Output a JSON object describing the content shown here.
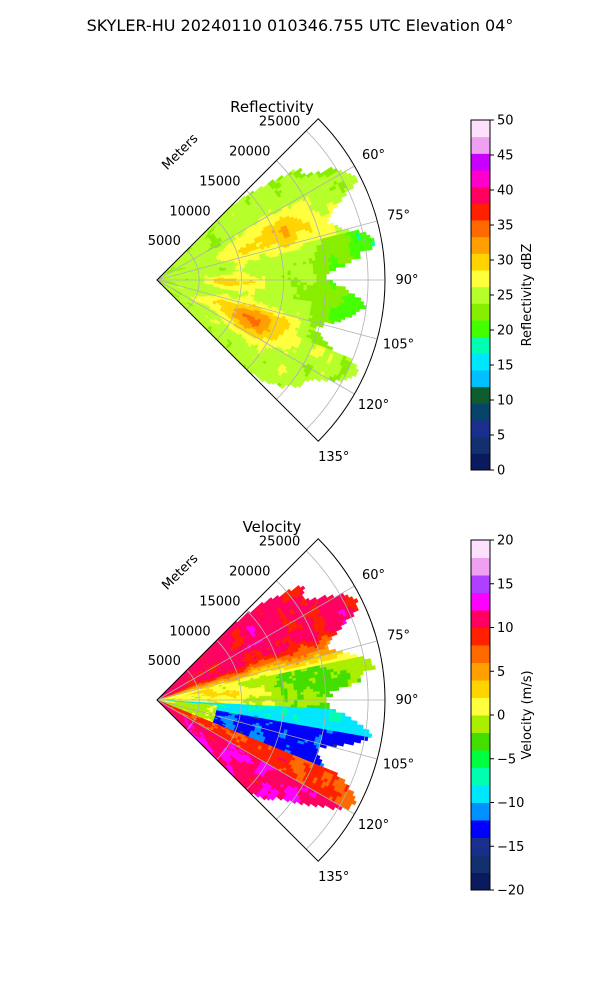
{
  "figure": {
    "suptitle": "SKYLER-HU  20240110  010346.755 UTC Elevation 04°"
  },
  "chart_data": [
    {
      "type": "heatmap",
      "kind": "radar-ppi-sector",
      "title": "Reflectivity",
      "radial_axis_label": "Meters",
      "radial_ticks": [
        5000,
        10000,
        15000,
        20000,
        25000
      ],
      "radial_tick_labels": [
        "5000",
        "10000",
        "15000",
        "20000",
        "25000"
      ],
      "rlim": [
        0,
        27000
      ],
      "azimuth_range_deg": [
        45,
        135
      ],
      "azimuth_ticks_deg": [
        60,
        75,
        90,
        105,
        120,
        135
      ],
      "azimuth_tick_labels": [
        "60°",
        "75°",
        "90°",
        "105°",
        "120°",
        "135°"
      ],
      "grid": true,
      "colorbar": {
        "label": "Reflectivity dBZ",
        "range": [
          0,
          50
        ],
        "ticks": [
          0,
          5,
          10,
          15,
          20,
          25,
          30,
          35,
          40,
          45,
          50
        ],
        "tick_labels": [
          "0",
          "5",
          "10",
          "15",
          "20",
          "25",
          "30",
          "35",
          "40",
          "45",
          "50"
        ],
        "colormap": "pyart_HomeyerRainbow",
        "colors": [
          "#0b1a5e",
          "#13306e",
          "#1a2f8c",
          "#08446a",
          "#0f5d2e",
          "#00bfff",
          "#00e6ff",
          "#00ffb0",
          "#44ff00",
          "#88ee00",
          "#b6ff2a",
          "#ffff3d",
          "#ffd400",
          "#ffa000",
          "#ff6a00",
          "#ff2000",
          "#ff0060",
          "#ff00cc",
          "#c800ff",
          "#f0a0f0",
          "#fde0fc"
        ]
      },
      "field_summary": {
        "dominant_values": "20–35 dBZ (yellow to orange) across the sector",
        "max_values": "≈35–40 dBZ in bands near 10000–20000 m, azimuth 75°–125°"
      }
    },
    {
      "type": "heatmap",
      "kind": "radar-ppi-sector",
      "title": "Velocity",
      "radial_axis_label": "Meters",
      "radial_ticks": [
        5000,
        10000,
        15000,
        20000,
        25000
      ],
      "radial_tick_labels": [
        "5000",
        "10000",
        "15000",
        "20000",
        "25000"
      ],
      "rlim": [
        0,
        27000
      ],
      "azimuth_range_deg": [
        45,
        135
      ],
      "azimuth_ticks_deg": [
        60,
        75,
        90,
        105,
        120,
        135
      ],
      "azimuth_tick_labels": [
        "60°",
        "75°",
        "90°",
        "105°",
        "120°",
        "135°"
      ],
      "grid": true,
      "colorbar": {
        "label": "Velocity (m/s)",
        "range": [
          -20,
          20
        ],
        "ticks": [
          -20,
          -15,
          -10,
          -5,
          0,
          5,
          10,
          15,
          20
        ],
        "tick_labels": [
          "−20",
          "−15",
          "−10",
          "−5",
          "0",
          "5",
          "10",
          "15",
          "20"
        ],
        "colormap": "pyart_BuDRd18",
        "colors": [
          "#0b1a5e",
          "#13306e",
          "#1a2f8c",
          "#0000ff",
          "#0090ff",
          "#00e6ff",
          "#00ffb0",
          "#00ff40",
          "#44dd00",
          "#aaee00",
          "#ffff3d",
          "#ffd400",
          "#ffa000",
          "#ff6a00",
          "#ff2000",
          "#ff0060",
          "#ff00ff",
          "#b040ff",
          "#f0a0f0",
          "#fde0fc"
        ]
      },
      "field_summary": {
        "near_60": "positive velocities +10 to +20 m/s (red/magenta)",
        "near_90": "near zero to +5 m/s (yellow/orange)",
        "near_105": "negative velocities −5 to −15 m/s (green/cyan)",
        "near_120_135": "positive velocities +10 to +15 m/s (magenta/red)"
      }
    }
  ]
}
